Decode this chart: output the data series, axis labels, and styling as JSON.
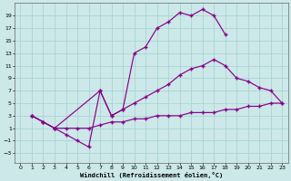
{
  "xlabel": "Windchill (Refroidissement éolien,°C)",
  "xlim": [
    -0.5,
    23.5
  ],
  "ylim": [
    -4.5,
    21
  ],
  "xticks": [
    0,
    1,
    2,
    3,
    4,
    5,
    6,
    7,
    8,
    9,
    10,
    11,
    12,
    13,
    14,
    15,
    16,
    17,
    18,
    19,
    20,
    21,
    22,
    23
  ],
  "yticks": [
    -3,
    -1,
    1,
    3,
    5,
    7,
    9,
    11,
    13,
    15,
    17,
    19
  ],
  "bg_color": "#cce8e8",
  "line_color": "#880088",
  "grid_color": "#aad4d4",
  "curves": [
    {
      "x": [
        1,
        2,
        3,
        4,
        5,
        6,
        7,
        8,
        9,
        10,
        11,
        12,
        13,
        14,
        15,
        16,
        17,
        18
      ],
      "y": [
        3,
        2,
        1,
        0,
        -1,
        -2,
        7,
        3,
        4,
        13,
        14,
        17,
        18,
        19.5,
        19,
        20,
        19,
        16
      ]
    },
    {
      "x": [
        1,
        2,
        3,
        7,
        8,
        9,
        10,
        11,
        12,
        13,
        14,
        15,
        16,
        17,
        18,
        19,
        20,
        21,
        22,
        23
      ],
      "y": [
        3,
        2,
        1,
        7,
        3,
        4,
        5,
        6,
        7,
        8,
        9.5,
        10.5,
        11,
        12,
        11,
        9,
        8.5,
        7.5,
        7,
        5
      ]
    },
    {
      "x": [
        1,
        2,
        3,
        4,
        5,
        6,
        7,
        8,
        9,
        10,
        11,
        12,
        13,
        14,
        15,
        16,
        17,
        18,
        19,
        20,
        21,
        22,
        23
      ],
      "y": [
        3,
        2,
        1,
        1,
        1,
        1,
        1.5,
        2,
        2,
        2.5,
        2.5,
        3,
        3,
        3,
        3.5,
        3.5,
        3.5,
        4,
        4,
        4.5,
        4.5,
        5,
        5
      ]
    }
  ]
}
